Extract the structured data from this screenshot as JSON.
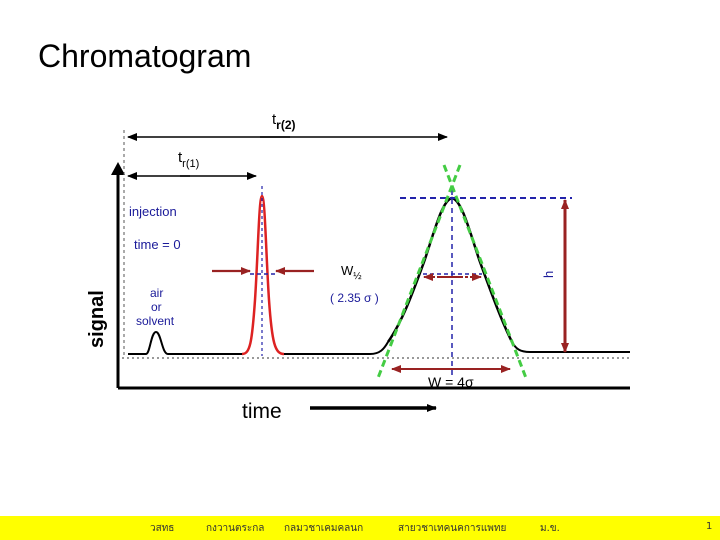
{
  "slide": {
    "title": "Chromatogram"
  },
  "diagram": {
    "axis_y_label": "signal",
    "axis_x_label": "time",
    "tr1_label": "t",
    "tr1_sub": "r(1)",
    "tr2_label": "t",
    "tr2_sub": "r(2)",
    "injection_label": "injection",
    "time_zero_label": "time = 0",
    "air_solvent_label": [
      "air",
      "or",
      "solvent"
    ],
    "whalf_label": "W",
    "whalf_sub": "½",
    "sigma_note": "( 2.35 σ )",
    "width_label": "W = 4σ",
    "height_label": "h",
    "colors": {
      "peak": "#dd2222",
      "trace": "#000000",
      "arrow": "#992222",
      "blue_dash": "#2222aa",
      "green_dash": "#44cc44"
    }
  },
  "footer": {
    "items": [
      "วสทธ",
      "กงวานตระกล",
      "กลมวชาเคมคลนก",
      "สายวชาเทคนคการแพทย",
      "ม.ข.",
      "1"
    ],
    "background": "#ffff00"
  }
}
